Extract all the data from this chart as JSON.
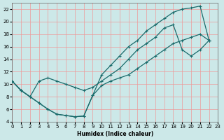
{
  "xlabel": "Humidex (Indice chaleur)",
  "bg_color": "#cce8e8",
  "grid_color": "#ee9999",
  "line_color": "#1a6b6b",
  "xlim": [
    0,
    23
  ],
  "ylim": [
    4,
    23
  ],
  "xticks": [
    0,
    1,
    2,
    3,
    4,
    5,
    6,
    7,
    8,
    9,
    10,
    11,
    12,
    13,
    14,
    15,
    16,
    17,
    18,
    19,
    20,
    21,
    22,
    23
  ],
  "yticks": [
    4,
    6,
    8,
    10,
    12,
    14,
    16,
    18,
    20,
    22
  ],
  "line1_x": [
    0,
    1,
    2,
    3,
    4,
    5,
    6,
    7,
    8,
    9,
    10,
    11,
    12,
    13,
    14,
    15,
    16,
    17,
    18,
    19,
    20,
    21,
    22
  ],
  "line1_y": [
    10.5,
    9.0,
    8.0,
    7.0,
    6.0,
    5.2,
    5.0,
    4.8,
    4.9,
    8.2,
    11.5,
    13.0,
    14.5,
    16.0,
    17.0,
    18.5,
    19.5,
    20.5,
    21.5,
    22.0,
    22.2,
    22.5,
    17.0
  ],
  "line2_x": [
    0,
    1,
    2,
    3,
    4,
    5,
    6,
    7,
    8,
    9,
    10,
    11,
    12,
    13,
    14,
    15,
    16,
    17,
    18,
    19,
    20,
    21,
    22
  ],
  "line2_y": [
    10.5,
    9.0,
    8.0,
    10.5,
    11.0,
    10.5,
    10.0,
    9.5,
    9.0,
    9.5,
    10.5,
    11.5,
    12.5,
    14.0,
    15.5,
    16.5,
    17.5,
    19.0,
    19.5,
    15.5,
    14.5,
    15.5,
    17.0
  ],
  "line3_x": [
    0,
    1,
    2,
    3,
    4,
    5,
    6,
    7,
    8,
    9,
    10,
    11,
    12,
    13,
    14,
    15,
    16,
    17,
    18,
    19,
    20,
    21,
    22
  ],
  "line3_y": [
    10.5,
    9.0,
    8.0,
    7.0,
    6.0,
    5.2,
    5.0,
    4.8,
    4.9,
    8.2,
    9.8,
    10.5,
    11.0,
    11.5,
    12.5,
    13.5,
    14.5,
    15.5,
    16.5,
    17.0,
    17.5,
    18.0,
    17.0
  ]
}
